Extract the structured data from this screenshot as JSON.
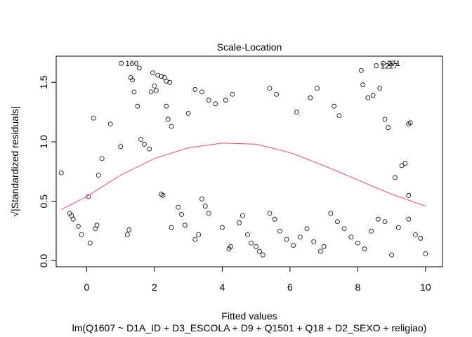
{
  "chart_data": {
    "type": "scatter",
    "title": "Scale-Location",
    "xlabel": "Fitted values",
    "subtitle": "lm(Q1607 ~ D1A_ID + D3_ESCOLA + D9 + Q1501 + Q18 + D2_SEXO + religiao)",
    "ylabel": "√|Standardized residuals|",
    "xlim": [
      -0.9,
      10.5
    ],
    "ylim": [
      -0.05,
      1.72
    ],
    "x_ticks": [
      0,
      2,
      4,
      6,
      8,
      10
    ],
    "x_tick_labels": [
      "0",
      "2",
      "4",
      "6",
      "8",
      "10"
    ],
    "y_ticks": [
      0.0,
      0.5,
      1.0,
      1.5
    ],
    "y_tick_labels": [
      "0.0",
      "0.5",
      "1.0",
      "1.5"
    ],
    "grid": false,
    "point_color": "#000000",
    "smooth_color": "#DF536B",
    "smoother": [
      [
        -0.75,
        0.43
      ],
      [
        0.0,
        0.54
      ],
      [
        1.0,
        0.72
      ],
      [
        2.0,
        0.86
      ],
      [
        3.0,
        0.95
      ],
      [
        4.0,
        0.99
      ],
      [
        5.0,
        0.98
      ],
      [
        6.0,
        0.91
      ],
      [
        7.0,
        0.8
      ],
      [
        8.0,
        0.68
      ],
      [
        9.0,
        0.56
      ],
      [
        10.0,
        0.46
      ]
    ],
    "labeled_points": [
      {
        "label": "160",
        "x": 1.02,
        "y": 1.66
      },
      {
        "label": "1227",
        "x": 8.55,
        "y": 1.64
      },
      {
        "label": "271",
        "x": 8.75,
        "y": 1.66
      }
    ],
    "points": [
      [
        -0.75,
        0.74
      ],
      [
        -0.5,
        0.4
      ],
      [
        -0.45,
        0.38
      ],
      [
        -0.4,
        0.35
      ],
      [
        -0.25,
        0.29
      ],
      [
        -0.15,
        0.22
      ],
      [
        0.05,
        0.54
      ],
      [
        0.1,
        0.15
      ],
      [
        0.25,
        0.27
      ],
      [
        0.3,
        0.3
      ],
      [
        0.2,
        1.2
      ],
      [
        0.35,
        0.72
      ],
      [
        0.45,
        0.86
      ],
      [
        0.7,
        1.15
      ],
      [
        1.0,
        0.96
      ],
      [
        1.02,
        1.66
      ],
      [
        1.2,
        0.22
      ],
      [
        1.25,
        0.26
      ],
      [
        1.3,
        1.54
      ],
      [
        1.35,
        1.52
      ],
      [
        1.4,
        1.42
      ],
      [
        1.5,
        1.3
      ],
      [
        1.55,
        1.62
      ],
      [
        1.6,
        1.02
      ],
      [
        1.7,
        0.98
      ],
      [
        1.85,
        0.94
      ],
      [
        1.9,
        1.42
      ],
      [
        1.95,
        1.58
      ],
      [
        2.0,
        1.47
      ],
      [
        2.05,
        1.43
      ],
      [
        2.1,
        1.56
      ],
      [
        2.2,
        1.55
      ],
      [
        2.3,
        1.54
      ],
      [
        2.35,
        1.51
      ],
      [
        2.45,
        1.5
      ],
      [
        2.2,
        0.56
      ],
      [
        2.25,
        0.55
      ],
      [
        2.5,
        0.28
      ],
      [
        2.4,
        1.19
      ],
      [
        2.35,
        1.3
      ],
      [
        2.5,
        1.13
      ],
      [
        2.7,
        0.45
      ],
      [
        2.8,
        0.39
      ],
      [
        2.9,
        0.3
      ],
      [
        3.0,
        1.24
      ],
      [
        3.2,
        0.18
      ],
      [
        3.3,
        0.22
      ],
      [
        3.4,
        0.52
      ],
      [
        3.5,
        0.46
      ],
      [
        3.6,
        0.4
      ],
      [
        3.2,
        1.44
      ],
      [
        3.4,
        1.42
      ],
      [
        3.6,
        1.35
      ],
      [
        3.8,
        1.32
      ],
      [
        4.0,
        0.28
      ],
      [
        4.2,
        0.1
      ],
      [
        4.25,
        0.12
      ],
      [
        4.5,
        0.32
      ],
      [
        4.6,
        0.38
      ],
      [
        4.75,
        0.22
      ],
      [
        4.85,
        0.15
      ],
      [
        5.0,
        0.12
      ],
      [
        5.1,
        0.08
      ],
      [
        5.2,
        0.05
      ],
      [
        5.4,
        0.4
      ],
      [
        5.55,
        0.35
      ],
      [
        5.7,
        0.25
      ],
      [
        5.9,
        0.18
      ],
      [
        6.1,
        0.13
      ],
      [
        6.3,
        0.2
      ],
      [
        6.5,
        0.27
      ],
      [
        6.7,
        0.16
      ],
      [
        6.9,
        0.08
      ],
      [
        7.0,
        0.12
      ],
      [
        7.2,
        0.4
      ],
      [
        7.4,
        0.33
      ],
      [
        7.6,
        0.27
      ],
      [
        7.8,
        0.2
      ],
      [
        8.0,
        0.15
      ],
      [
        8.2,
        0.1
      ],
      [
        8.4,
        0.25
      ],
      [
        8.6,
        0.35
      ],
      [
        8.8,
        0.33
      ],
      [
        9.0,
        0.05
      ],
      [
        9.2,
        0.28
      ],
      [
        9.5,
        0.35
      ],
      [
        9.7,
        0.22
      ],
      [
        9.85,
        0.19
      ],
      [
        10.0,
        0.06
      ],
      [
        9.5,
        0.55
      ],
      [
        9.3,
        0.8
      ],
      [
        9.4,
        0.82
      ],
      [
        9.5,
        1.15
      ],
      [
        9.55,
        1.16
      ],
      [
        9.1,
        0.7
      ],
      [
        8.1,
        1.6
      ],
      [
        8.15,
        1.48
      ],
      [
        8.3,
        1.37
      ],
      [
        8.45,
        1.39
      ],
      [
        8.55,
        1.64
      ],
      [
        8.75,
        1.66
      ],
      [
        8.95,
        1.66
      ],
      [
        8.65,
        1.45
      ],
      [
        8.8,
        1.19
      ],
      [
        8.9,
        1.12
      ],
      [
        7.3,
        1.3
      ],
      [
        7.45,
        1.22
      ],
      [
        6.8,
        1.45
      ],
      [
        6.6,
        1.37
      ],
      [
        6.2,
        1.25
      ],
      [
        5.4,
        1.45
      ],
      [
        5.6,
        1.4
      ],
      [
        4.3,
        1.4
      ],
      [
        4.1,
        1.35
      ]
    ]
  }
}
